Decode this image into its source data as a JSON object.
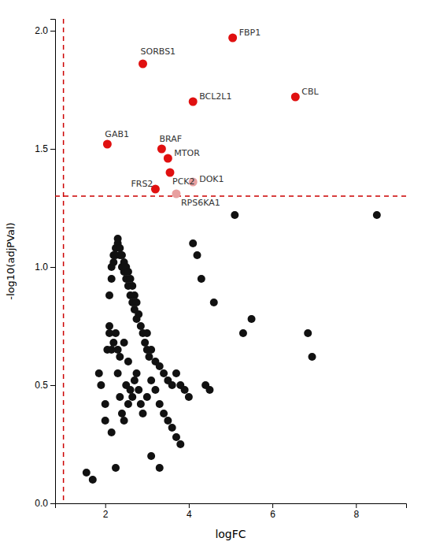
{
  "chart_data": {
    "type": "scatter",
    "title": "",
    "xlabel": "logFC",
    "ylabel": "-log10(adjPVal)",
    "xlim": [
      0.8,
      9.2
    ],
    "ylim": [
      0.0,
      2.05
    ],
    "xticks": [
      2,
      4,
      6,
      8
    ],
    "yticks": [
      {
        "value": 0,
        "label": "0.0"
      },
      0.5,
      {
        "value": 1,
        "label": "1.0"
      },
      1.5,
      {
        "value": 2,
        "label": "2.0"
      }
    ],
    "grid": false,
    "series": [
      {
        "color": "#111111",
        "x": [
          1.55,
          1.7,
          1.85,
          1.9,
          2.0,
          2.0,
          2.05,
          2.1,
          2.1,
          2.15,
          2.15,
          2.2,
          2.2,
          2.25,
          2.25,
          2.3,
          2.3,
          2.35,
          2.35,
          2.4,
          2.4,
          2.45,
          2.45,
          2.5,
          2.5,
          2.55,
          2.55,
          2.6,
          2.6,
          2.65,
          2.65,
          2.7,
          2.7,
          2.75,
          2.75,
          2.8,
          2.85,
          2.9,
          2.95,
          3.0,
          3.0,
          3.05,
          3.1,
          3.2,
          3.3,
          3.4,
          3.5,
          3.6,
          3.7,
          3.8,
          3.9,
          4.0,
          4.1,
          4.2,
          4.3,
          4.4,
          4.5,
          4.6,
          5.1,
          5.3,
          5.5,
          6.85,
          6.95,
          8.5,
          2.3,
          2.35,
          2.4,
          2.45,
          2.5,
          2.55,
          2.6,
          2.65,
          2.7,
          2.75,
          2.8,
          2.85,
          2.9,
          3.0,
          3.1,
          3.2,
          3.3,
          3.4,
          3.5,
          3.6,
          3.7,
          3.8,
          2.1,
          2.15,
          2.2,
          2.25,
          2.3,
          2.35,
          2.45,
          2.55,
          2.15,
          2.25,
          3.1,
          3.3
        ],
        "y": [
          0.13,
          0.1,
          0.55,
          0.5,
          0.35,
          0.42,
          0.65,
          0.75,
          0.88,
          0.95,
          1.0,
          1.02,
          1.05,
          1.08,
          1.05,
          1.1,
          1.12,
          1.08,
          1.05,
          1.0,
          1.05,
          0.98,
          1.02,
          1.0,
          0.95,
          0.92,
          0.98,
          0.88,
          0.95,
          0.85,
          0.92,
          0.82,
          0.88,
          0.78,
          0.85,
          0.8,
          0.75,
          0.72,
          0.68,
          0.65,
          0.72,
          0.62,
          0.65,
          0.6,
          0.58,
          0.55,
          0.52,
          0.5,
          0.55,
          0.5,
          0.48,
          0.45,
          1.1,
          1.05,
          0.95,
          0.5,
          0.48,
          0.85,
          1.22,
          0.72,
          0.78,
          0.72,
          0.62,
          1.22,
          0.55,
          0.45,
          0.38,
          0.35,
          0.5,
          0.42,
          0.48,
          0.45,
          0.52,
          0.55,
          0.48,
          0.42,
          0.38,
          0.45,
          0.52,
          0.48,
          0.42,
          0.38,
          0.35,
          0.32,
          0.28,
          0.25,
          0.72,
          0.65,
          0.68,
          0.72,
          0.65,
          0.62,
          0.68,
          0.6,
          0.3,
          0.15,
          0.2,
          0.15
        ]
      },
      {
        "x": [
          5.05,
          2.9,
          4.1,
          6.55,
          2.05,
          3.35,
          3.5,
          3.55,
          4.1,
          3.2,
          3.7
        ],
        "y": [
          1.97,
          1.86,
          1.7,
          1.72,
          1.52,
          1.5,
          1.46,
          1.4,
          1.36,
          1.33,
          1.31
        ],
        "labels": [
          "FBP1",
          "SORBS1",
          "BCL2L1",
          "CBL",
          "GAB1",
          "BRAF",
          "MTOR",
          "PCK2",
          "DOK1",
          "FRS2",
          "RPS6KA1"
        ],
        "colors": [
          "#e01010",
          "#e01010",
          "#e01010",
          "#e01010",
          "#e01010",
          "#e01010",
          "#e01010",
          "#e01010",
          "#e8a0a0",
          "#e01010",
          "#e8a0a0"
        ]
      }
    ],
    "reference_lines": [
      {
        "axis": "y",
        "value": 1.3,
        "color": "#cc0000",
        "line_style": "dashed"
      },
      {
        "axis": "x",
        "value": 1.0,
        "color": "#cc0000",
        "line_style": "dashed"
      }
    ]
  }
}
